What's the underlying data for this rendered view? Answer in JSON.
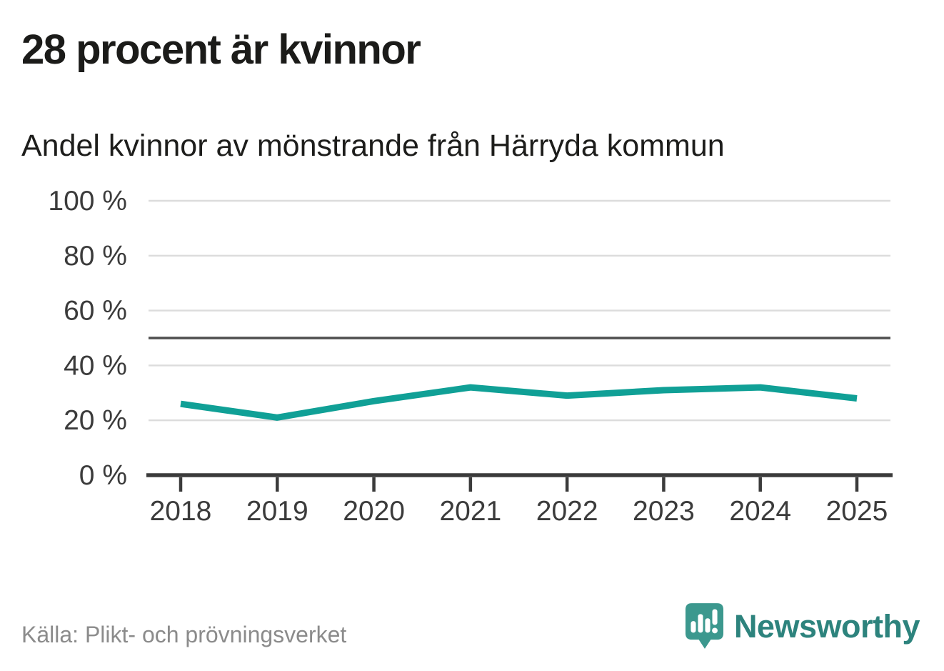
{
  "header": {
    "title": "28 procent är kvinnor",
    "subtitle": "Andel kvinnor av mönstrande från Härryda kommun"
  },
  "footer": {
    "source": "Källa: Plikt- och prövningsverket",
    "logo_text": "Newsworthy"
  },
  "chart_data": {
    "type": "line",
    "title": "28 procent är kvinnor",
    "subtitle": "Andel kvinnor av mönstrande från Härryda kommun",
    "categories": [
      "2018",
      "2019",
      "2020",
      "2021",
      "2022",
      "2023",
      "2024",
      "2025"
    ],
    "series": [
      {
        "name": "Andel kvinnor av mönstrande",
        "values": [
          26,
          21,
          27,
          32,
          29,
          31,
          32,
          28
        ],
        "color": "#10a096"
      }
    ],
    "unit": "%",
    "ylim": [
      0,
      100
    ],
    "yticks": [
      {
        "value": 0,
        "label": "0 %"
      },
      {
        "value": 20,
        "label": "20 %"
      },
      {
        "value": 40,
        "label": "40 %"
      },
      {
        "value": 60,
        "label": "60 %"
      },
      {
        "value": 80,
        "label": "80 %"
      },
      {
        "value": 100,
        "label": "100 %"
      }
    ],
    "reference_line": {
      "value": 50
    },
    "grid": true,
    "legend": "none",
    "colors": {
      "line": "#10a096",
      "grid": "#dcdcdc",
      "axis": "#3b3b3b",
      "reference": "#4f4f4f",
      "tick_label": "#3b3b3b",
      "brand_icon": "#3c988e",
      "brand_text": "#2d837d"
    }
  }
}
